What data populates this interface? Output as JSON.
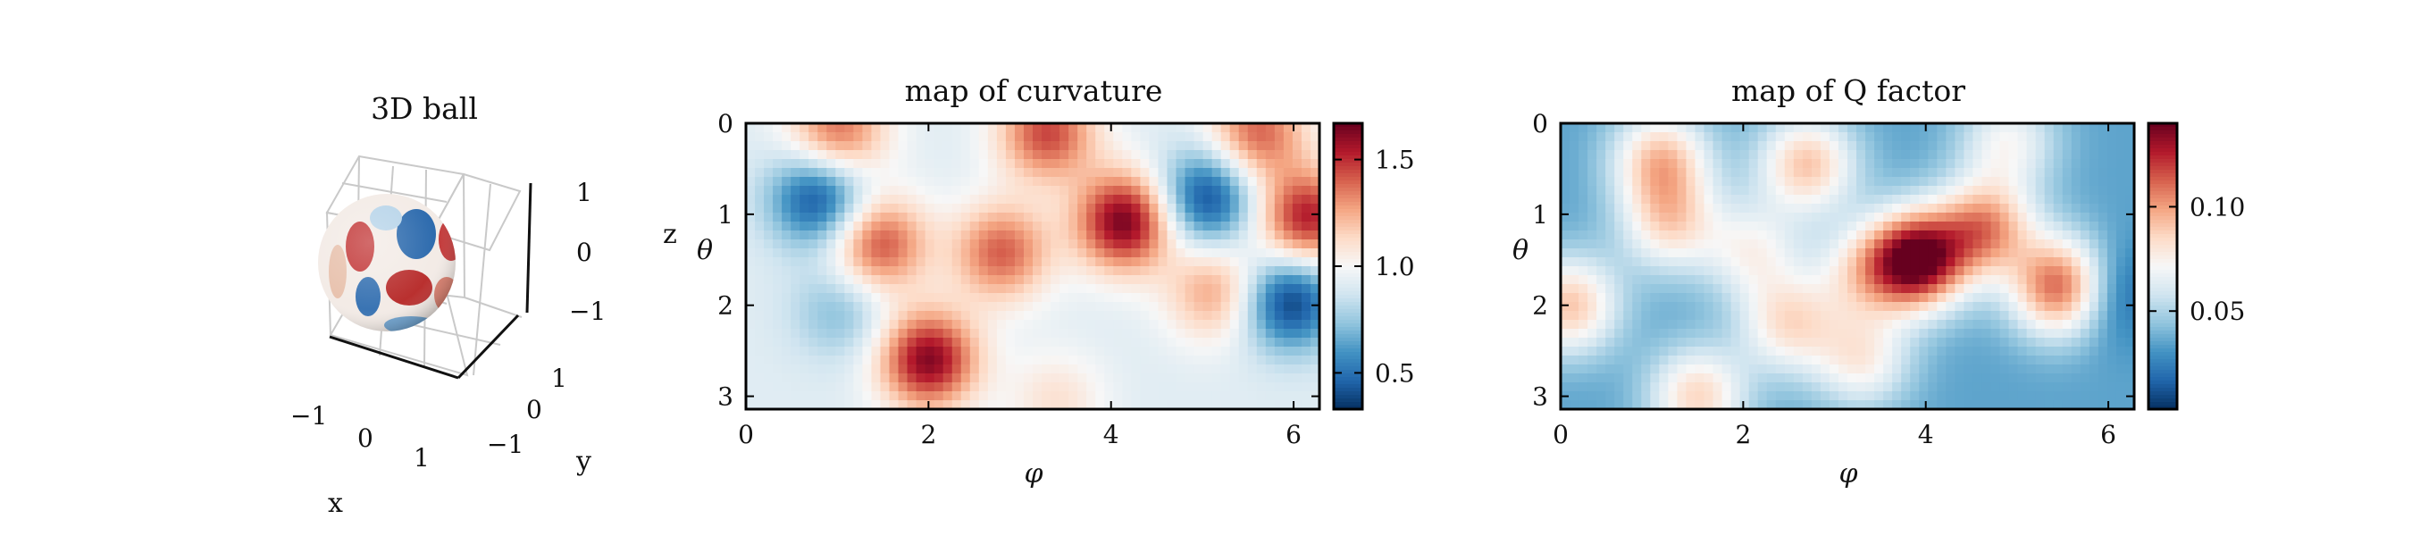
{
  "chart_data": [
    {
      "type": "3d-surface",
      "title": "3D ball",
      "xlabel": "x",
      "ylabel": "y",
      "zlabel": "z",
      "x_ticks": [
        "−1",
        "0",
        "1"
      ],
      "y_ticks": [
        "−1",
        "0",
        "1"
      ],
      "z_ticks": [
        "1",
        "0",
        "−1"
      ],
      "xlim": [
        -1,
        1
      ],
      "ylim": [
        -1,
        1
      ],
      "zlim": [
        -1,
        1
      ],
      "colormap": "RdBu_r"
    },
    {
      "type": "heatmap",
      "title": "map of curvature",
      "xlabel": "φ",
      "ylabel": "θ",
      "x_ticks": [
        "0",
        "2",
        "4",
        "6"
      ],
      "y_ticks": [
        "0",
        "1",
        "2",
        "3"
      ],
      "xlim": [
        0,
        6.2832
      ],
      "ylim": [
        0,
        3.1416
      ],
      "colormap": "RdBu_r",
      "colorbar": {
        "min": 0.33,
        "max": 1.67,
        "ticks": [
          "0.5",
          "1.0",
          "1.5"
        ],
        "tick_values": [
          0.5,
          1.0,
          1.5
        ]
      },
      "base_value": 0.92,
      "features": [
        {
          "phi": 0.8,
          "theta": 0.82,
          "value": 0.38
        },
        {
          "phi": 1.45,
          "theta": 1.33,
          "value": 1.45
        },
        {
          "phi": 2.8,
          "theta": 1.42,
          "value": 1.4
        },
        {
          "phi": 4.15,
          "theta": 1.08,
          "value": 1.65
        },
        {
          "phi": 5.05,
          "theta": 0.82,
          "value": 0.38
        },
        {
          "phi": 5.15,
          "theta": 1.85,
          "value": 1.28
        },
        {
          "phi": 6.15,
          "theta": 1.05,
          "value": 1.55
        },
        {
          "phi": 5.95,
          "theta": 1.95,
          "value": 0.35
        },
        {
          "phi": 2.0,
          "theta": 2.6,
          "value": 1.62
        },
        {
          "phi": 1.05,
          "theta": 2.05,
          "value": 0.7
        },
        {
          "phi": 3.3,
          "theta": 0.1,
          "value": 1.45
        },
        {
          "phi": 1.0,
          "theta": 0.1,
          "value": 1.4
        },
        {
          "phi": 5.6,
          "theta": 0.1,
          "value": 1.4
        },
        {
          "phi": 3.4,
          "theta": 3.05,
          "value": 1.1
        }
      ]
    },
    {
      "type": "heatmap",
      "title": "map of Q factor",
      "xlabel": "φ",
      "ylabel": "θ",
      "x_ticks": [
        "0",
        "2",
        "4",
        "6"
      ],
      "y_ticks": [
        "0",
        "1",
        "2",
        "3"
      ],
      "xlim": [
        0,
        6.2832
      ],
      "ylim": [
        0,
        3.1416
      ],
      "colormap": "RdBu_r",
      "colorbar": {
        "min": 0.003,
        "max": 0.14,
        "ticks": [
          "0.05",
          "0.10"
        ],
        "tick_values": [
          0.05,
          0.1
        ]
      },
      "base_value": 0.035,
      "features": [
        {
          "phi": 3.9,
          "theta": 1.5,
          "value": 0.14
        },
        {
          "phi": 5.5,
          "theta": 1.8,
          "value": 0.12
        },
        {
          "phi": 5.95,
          "theta": 1.85,
          "value": 0.005
        },
        {
          "phi": 4.65,
          "theta": 1.15,
          "value": 0.1
        },
        {
          "phi": 1.1,
          "theta": 0.4,
          "value": 0.09
        },
        {
          "phi": 2.7,
          "theta": 0.45,
          "value": 0.09
        },
        {
          "phi": 0.1,
          "theta": 2.0,
          "value": 0.09
        },
        {
          "phi": 2.5,
          "theta": 2.2,
          "value": 0.08
        },
        {
          "phi": 3.3,
          "theta": 2.6,
          "value": 0.075
        },
        {
          "phi": 1.2,
          "theta": 1.1,
          "value": 0.08
        },
        {
          "phi": 3.3,
          "theta": 1.65,
          "value": 0.07
        },
        {
          "phi": 4.9,
          "theta": 0.2,
          "value": 0.07
        },
        {
          "phi": 1.5,
          "theta": 3.0,
          "value": 0.085
        },
        {
          "phi": 2.1,
          "theta": 1.4,
          "value": 0.07
        }
      ]
    }
  ]
}
